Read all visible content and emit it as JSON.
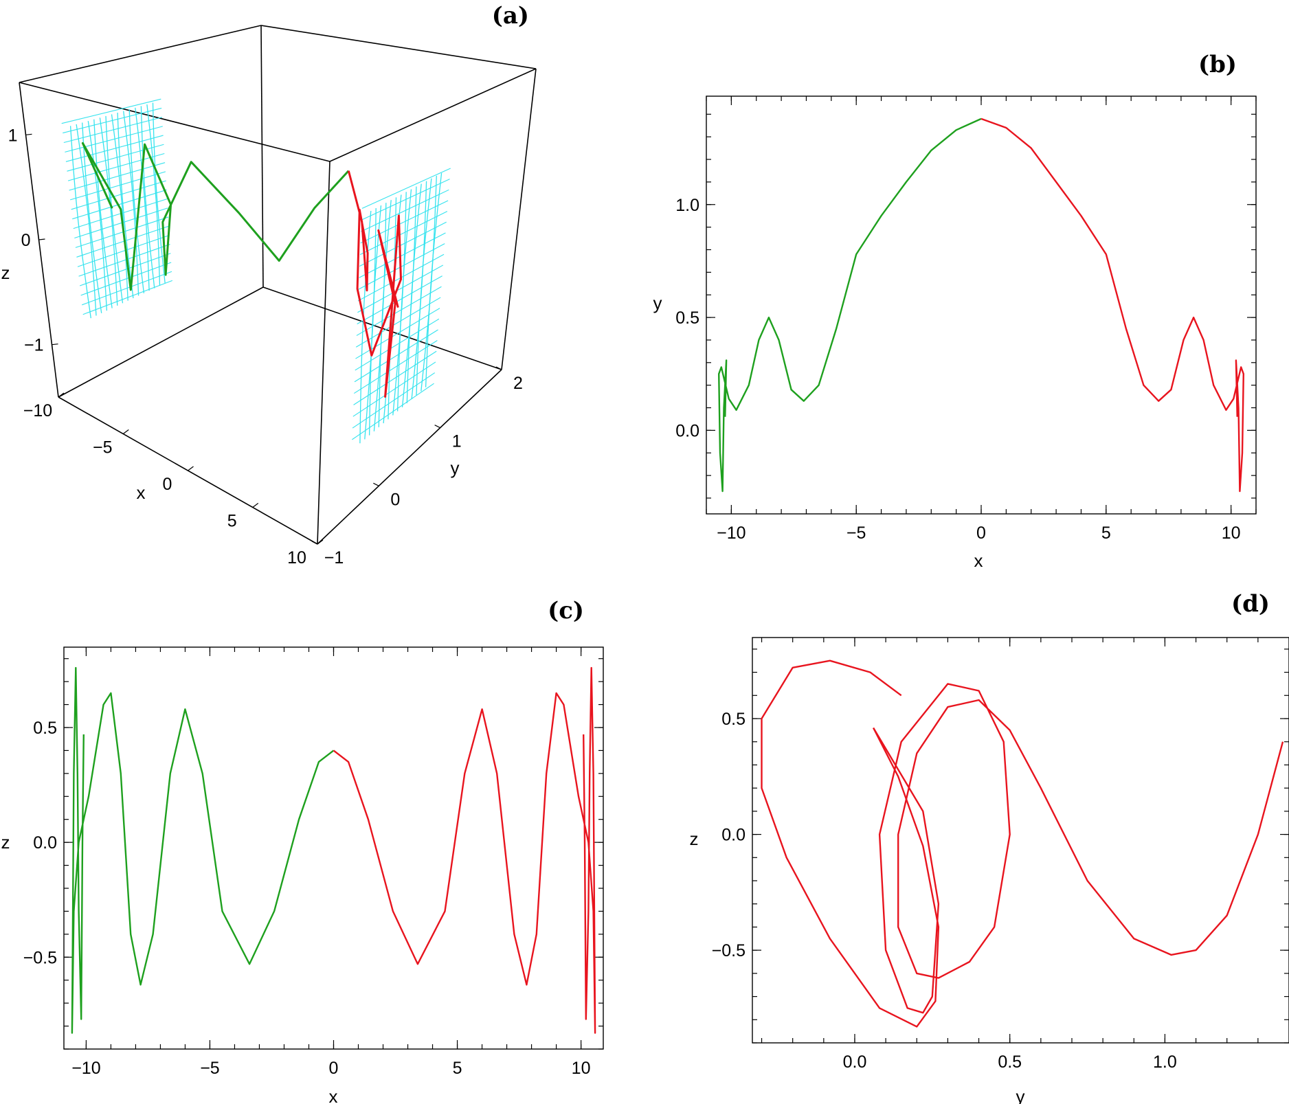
{
  "colors": {
    "green": "#1ea01e",
    "red": "#e8141e",
    "cyan": "#35e3ee"
  },
  "chart_data": [
    {
      "id": "a",
      "type": "line",
      "panel_label": "(a)",
      "xlabel": "x",
      "ylabel": "y",
      "zlabel": "z",
      "xlim": [
        -10,
        10
      ],
      "ylim": [
        -1,
        2
      ],
      "zlim": [
        -1.5,
        1.5
      ],
      "x_ticks": [
        "−10",
        "−5",
        "0",
        "5",
        "10"
      ],
      "y_ticks": [
        "−1",
        "0",
        "1",
        "2"
      ],
      "z_ticks": [
        "−1",
        "0",
        "1"
      ],
      "series": [
        {
          "color": "green",
          "points": [
            [
              -10.4,
              0.06,
              0.0
            ],
            [
              -10.2,
              -0.27,
              0.75
            ],
            [
              -10.0,
              0.1,
              0.0
            ],
            [
              -9.7,
              0.09,
              -0.8
            ],
            [
              -9.0,
              0.3,
              0.65
            ],
            [
              -8.5,
              0.5,
              0.0
            ],
            [
              -7.8,
              0.25,
              -0.6
            ],
            [
              -7.1,
              0.13,
              0.0
            ],
            [
              -6.0,
              0.35,
              0.58
            ],
            [
              -4.8,
              0.75,
              0.0
            ],
            [
              -3.4,
              1.05,
              -0.53
            ],
            [
              -1.8,
              1.25,
              0.0
            ],
            [
              0.0,
              1.38,
              0.4
            ]
          ]
        },
        {
          "color": "red",
          "points": [
            [
              0.0,
              1.38,
              0.4
            ],
            [
              1.8,
              1.25,
              0.0
            ],
            [
              3.4,
              1.05,
              -0.53
            ],
            [
              4.8,
              0.75,
              0.0
            ],
            [
              6.0,
              0.35,
              0.58
            ],
            [
              7.1,
              0.13,
              0.0
            ],
            [
              7.8,
              0.25,
              -0.6
            ],
            [
              8.5,
              0.5,
              0.0
            ],
            [
              9.0,
              0.3,
              0.65
            ],
            [
              9.7,
              0.09,
              -0.8
            ],
            [
              10.0,
              0.1,
              0.0
            ],
            [
              10.2,
              -0.27,
              0.75
            ],
            [
              10.4,
              0.06,
              0.0
            ]
          ]
        }
      ]
    },
    {
      "id": "b",
      "type": "line",
      "panel_label": "(b)",
      "xlabel": "x",
      "ylabel": "y",
      "xlim": [
        -11,
        11
      ],
      "ylim": [
        -0.37,
        1.48
      ],
      "x_ticks": [
        -10,
        -5,
        0,
        5,
        10
      ],
      "y_ticks": [
        0.0,
        0.5,
        1.0
      ],
      "x_tick_labels": [
        "−10",
        "−5",
        "0",
        "5",
        "10"
      ],
      "y_tick_labels": [
        "0.0",
        "0.5",
        "1.0"
      ],
      "series": [
        {
          "color": "green",
          "points": [
            [
              -10.25,
              0.06
            ],
            [
              -10.2,
              0.31
            ],
            [
              -10.3,
              0.1
            ],
            [
              -10.35,
              -0.27
            ],
            [
              -10.45,
              -0.1
            ],
            [
              -10.5,
              0.25
            ],
            [
              -10.4,
              0.28
            ],
            [
              -10.1,
              0.14
            ],
            [
              -9.8,
              0.09
            ],
            [
              -9.3,
              0.2
            ],
            [
              -8.9,
              0.4
            ],
            [
              -8.5,
              0.5
            ],
            [
              -8.1,
              0.4
            ],
            [
              -7.6,
              0.18
            ],
            [
              -7.1,
              0.13
            ],
            [
              -6.5,
              0.2
            ],
            [
              -5.8,
              0.45
            ],
            [
              -5.0,
              0.78
            ],
            [
              -4.0,
              0.95
            ],
            [
              -3.0,
              1.1
            ],
            [
              -2.0,
              1.24
            ],
            [
              -1.0,
              1.33
            ],
            [
              0.0,
              1.38
            ]
          ]
        },
        {
          "color": "red",
          "points": [
            [
              0.0,
              1.38
            ],
            [
              1.0,
              1.34
            ],
            [
              2.0,
              1.25
            ],
            [
              3.0,
              1.1
            ],
            [
              4.0,
              0.95
            ],
            [
              5.0,
              0.78
            ],
            [
              5.8,
              0.45
            ],
            [
              6.5,
              0.2
            ],
            [
              7.1,
              0.13
            ],
            [
              7.6,
              0.18
            ],
            [
              8.1,
              0.4
            ],
            [
              8.5,
              0.5
            ],
            [
              8.9,
              0.4
            ],
            [
              9.3,
              0.2
            ],
            [
              9.8,
              0.09
            ],
            [
              10.1,
              0.14
            ],
            [
              10.4,
              0.28
            ],
            [
              10.5,
              0.25
            ],
            [
              10.45,
              -0.1
            ],
            [
              10.35,
              -0.27
            ],
            [
              10.3,
              0.1
            ],
            [
              10.2,
              0.31
            ],
            [
              10.25,
              0.06
            ]
          ]
        }
      ]
    },
    {
      "id": "c",
      "type": "line",
      "panel_label": "(c)",
      "xlabel": "x",
      "ylabel": "z",
      "xlim": [
        -10.9,
        10.9
      ],
      "ylim": [
        -0.9,
        0.85
      ],
      "x_ticks": [
        -10,
        -5,
        0,
        5,
        10
      ],
      "y_ticks": [
        -0.5,
        0.0,
        0.5
      ],
      "x_tick_labels": [
        "−10",
        "−5",
        "0",
        "5",
        "10"
      ],
      "y_tick_labels": [
        "−0.5",
        "0.0",
        "0.5"
      ],
      "series": [
        {
          "color": "green",
          "points": [
            [
              -10.1,
              0.47
            ],
            [
              -10.15,
              0.0
            ],
            [
              -10.2,
              -0.77
            ],
            [
              -10.3,
              -0.3
            ],
            [
              -10.35,
              0.3
            ],
            [
              -10.42,
              0.76
            ],
            [
              -10.5,
              0.3
            ],
            [
              -10.57,
              -0.83
            ],
            [
              -10.5,
              -0.3
            ],
            [
              -10.3,
              0.0
            ],
            [
              -9.9,
              0.2
            ],
            [
              -9.3,
              0.6
            ],
            [
              -9.0,
              0.65
            ],
            [
              -8.6,
              0.3
            ],
            [
              -8.2,
              -0.4
            ],
            [
              -7.8,
              -0.62
            ],
            [
              -7.3,
              -0.4
            ],
            [
              -6.6,
              0.3
            ],
            [
              -6.0,
              0.58
            ],
            [
              -5.3,
              0.3
            ],
            [
              -4.5,
              -0.3
            ],
            [
              -3.4,
              -0.53
            ],
            [
              -2.4,
              -0.3
            ],
            [
              -1.4,
              0.1
            ],
            [
              -0.6,
              0.35
            ],
            [
              0.0,
              0.4
            ]
          ]
        },
        {
          "color": "red",
          "points": [
            [
              0.0,
              0.4
            ],
            [
              0.6,
              0.35
            ],
            [
              1.4,
              0.1
            ],
            [
              2.4,
              -0.3
            ],
            [
              3.4,
              -0.53
            ],
            [
              4.5,
              -0.3
            ],
            [
              5.3,
              0.3
            ],
            [
              6.0,
              0.58
            ],
            [
              6.6,
              0.3
            ],
            [
              7.3,
              -0.4
            ],
            [
              7.8,
              -0.62
            ],
            [
              8.2,
              -0.4
            ],
            [
              8.6,
              0.3
            ],
            [
              9.0,
              0.65
            ],
            [
              9.3,
              0.6
            ],
            [
              9.9,
              0.2
            ],
            [
              10.3,
              0.0
            ],
            [
              10.5,
              -0.3
            ],
            [
              10.57,
              -0.83
            ],
            [
              10.5,
              0.3
            ],
            [
              10.42,
              0.76
            ],
            [
              10.35,
              0.3
            ],
            [
              10.3,
              -0.3
            ],
            [
              10.2,
              -0.77
            ],
            [
              10.15,
              0.0
            ],
            [
              10.1,
              0.47
            ]
          ]
        }
      ]
    },
    {
      "id": "d",
      "type": "line",
      "panel_label": "(d)",
      "xlabel": "y",
      "ylabel": "z",
      "xlim": [
        -0.33,
        1.4
      ],
      "ylim": [
        -0.9,
        0.85
      ],
      "x_ticks": [
        0.0,
        0.5,
        1.0
      ],
      "y_ticks": [
        -0.5,
        0.0,
        0.5
      ],
      "x_tick_labels": [
        "0.0",
        "0.5",
        "1.0"
      ],
      "y_tick_labels": [
        "−0.5",
        "0.0",
        "0.5"
      ],
      "series": [
        {
          "color": "red",
          "points": [
            [
              1.38,
              0.4
            ],
            [
              1.3,
              0.0
            ],
            [
              1.2,
              -0.35
            ],
            [
              1.1,
              -0.5
            ],
            [
              1.02,
              -0.52
            ],
            [
              0.9,
              -0.45
            ],
            [
              0.75,
              -0.2
            ],
            [
              0.6,
              0.2
            ],
            [
              0.5,
              0.45
            ],
            [
              0.4,
              0.58
            ],
            [
              0.3,
              0.55
            ],
            [
              0.2,
              0.35
            ],
            [
              0.14,
              0.0
            ],
            [
              0.14,
              -0.4
            ],
            [
              0.2,
              -0.6
            ],
            [
              0.27,
              -0.62
            ],
            [
              0.37,
              -0.55
            ],
            [
              0.45,
              -0.4
            ],
            [
              0.5,
              0.0
            ],
            [
              0.48,
              0.4
            ],
            [
              0.4,
              0.62
            ],
            [
              0.3,
              0.65
            ],
            [
              0.15,
              0.4
            ],
            [
              0.08,
              0.0
            ],
            [
              0.1,
              -0.5
            ],
            [
              0.17,
              -0.75
            ],
            [
              0.22,
              -0.77
            ],
            [
              0.25,
              -0.7
            ],
            [
              0.27,
              -0.3
            ],
            [
              0.22,
              0.1
            ],
            [
              0.06,
              0.46
            ]
          ]
        },
        {
          "color": "red",
          "points": [
            [
              0.06,
              0.46
            ],
            [
              0.14,
              0.25
            ],
            [
              0.22,
              -0.05
            ],
            [
              0.27,
              -0.4
            ],
            [
              0.26,
              -0.72
            ],
            [
              0.2,
              -0.83
            ],
            [
              0.08,
              -0.75
            ],
            [
              -0.08,
              -0.45
            ],
            [
              -0.22,
              -0.1
            ],
            [
              -0.3,
              0.2
            ],
            [
              -0.3,
              0.5
            ],
            [
              -0.2,
              0.72
            ],
            [
              -0.08,
              0.75
            ],
            [
              0.05,
              0.7
            ],
            [
              0.15,
              0.6
            ]
          ]
        }
      ]
    }
  ]
}
